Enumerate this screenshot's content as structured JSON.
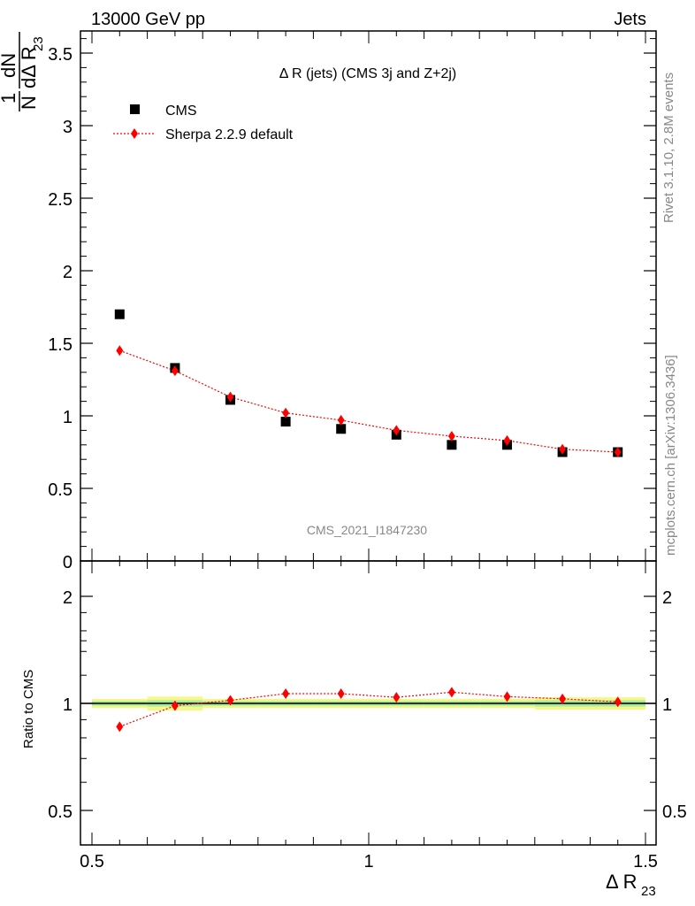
{
  "header": {
    "left": "13000 GeV pp",
    "right": "Jets"
  },
  "side_labels": {
    "rivet": "Rivet 3.1.10,  2.8M events",
    "mcplots": "mcplots.cern.ch [arXiv:1306.3436]"
  },
  "plot_title": "Δ R (jets) (CMS 3j and Z+2j)",
  "watermark": "CMS_2021_I1847230",
  "y_label_upper": {
    "num": "1",
    "den": "N",
    "dn": "dN",
    "dd": "dΔ R",
    "sub": "23"
  },
  "y_label_lower": "Ratio to CMS",
  "x_label": {
    "main": "Δ R",
    "sub": "23"
  },
  "legend": {
    "cms": "CMS",
    "sherpa": "Sherpa 2.2.9 default"
  },
  "colors": {
    "data": "#000000",
    "mc": "#ff0000",
    "band_inner": "#a8e8a0",
    "band_outer": "#f4f888"
  },
  "chart_data": [
    {
      "type": "scatter",
      "panel": "main",
      "xlabel": "Δ R23",
      "ylabel": "1/N dN/dΔ R23",
      "xlim": [
        0.5,
        1.5
      ],
      "ylim": [
        0,
        3.65
      ],
      "x_ticks": [
        "0.5",
        "1",
        "1.5"
      ],
      "y_ticks": [
        "0",
        "0.5",
        "1",
        "1.5",
        "2",
        "2.5",
        "3",
        "3.5"
      ],
      "series": [
        {
          "name": "CMS",
          "marker": "square",
          "x": [
            0.55,
            0.65,
            0.75,
            0.85,
            0.95,
            1.05,
            1.15,
            1.25,
            1.35,
            1.45
          ],
          "y": [
            1.7,
            1.33,
            1.11,
            0.96,
            0.91,
            0.87,
            0.8,
            0.8,
            0.75,
            0.75
          ]
        },
        {
          "name": "Sherpa 2.2.9 default",
          "marker": "diamond",
          "line": "dotted",
          "x": [
            0.55,
            0.65,
            0.75,
            0.85,
            0.95,
            1.05,
            1.15,
            1.25,
            1.35,
            1.45
          ],
          "y": [
            1.45,
            1.31,
            1.13,
            1.02,
            0.97,
            0.9,
            0.86,
            0.83,
            0.77,
            0.75
          ]
        }
      ]
    },
    {
      "type": "scatter",
      "panel": "ratio",
      "xlabel": "Δ R23",
      "ylabel": "Ratio to CMS",
      "xlim": [
        0.5,
        1.5
      ],
      "ylim": [
        0.35,
        2.3
      ],
      "x_ticks": [
        "0.5",
        "1",
        "1.5"
      ],
      "y_ticks": [
        "0.5",
        "1",
        "2"
      ],
      "uncertainty_band": {
        "x_edges": [
          0.5,
          0.6,
          0.7,
          0.8,
          0.9,
          1.0,
          1.1,
          1.2,
          1.3,
          1.4,
          1.5
        ],
        "inner": [
          0.015,
          0.02,
          0.015,
          0.015,
          0.015,
          0.015,
          0.015,
          0.015,
          0.02,
          0.02
        ],
        "outer": [
          0.03,
          0.045,
          0.03,
          0.03,
          0.03,
          0.03,
          0.03,
          0.03,
          0.04,
          0.04
        ]
      },
      "series": [
        {
          "name": "Sherpa 2.2.9 default",
          "marker": "diamond",
          "line": "dotted",
          "x": [
            0.55,
            0.65,
            0.75,
            0.85,
            0.95,
            1.05,
            1.15,
            1.25,
            1.35,
            1.45
          ],
          "y": [
            0.86,
            0.985,
            1.02,
            1.065,
            1.065,
            1.04,
            1.075,
            1.045,
            1.03,
            1.01
          ]
        }
      ]
    }
  ]
}
